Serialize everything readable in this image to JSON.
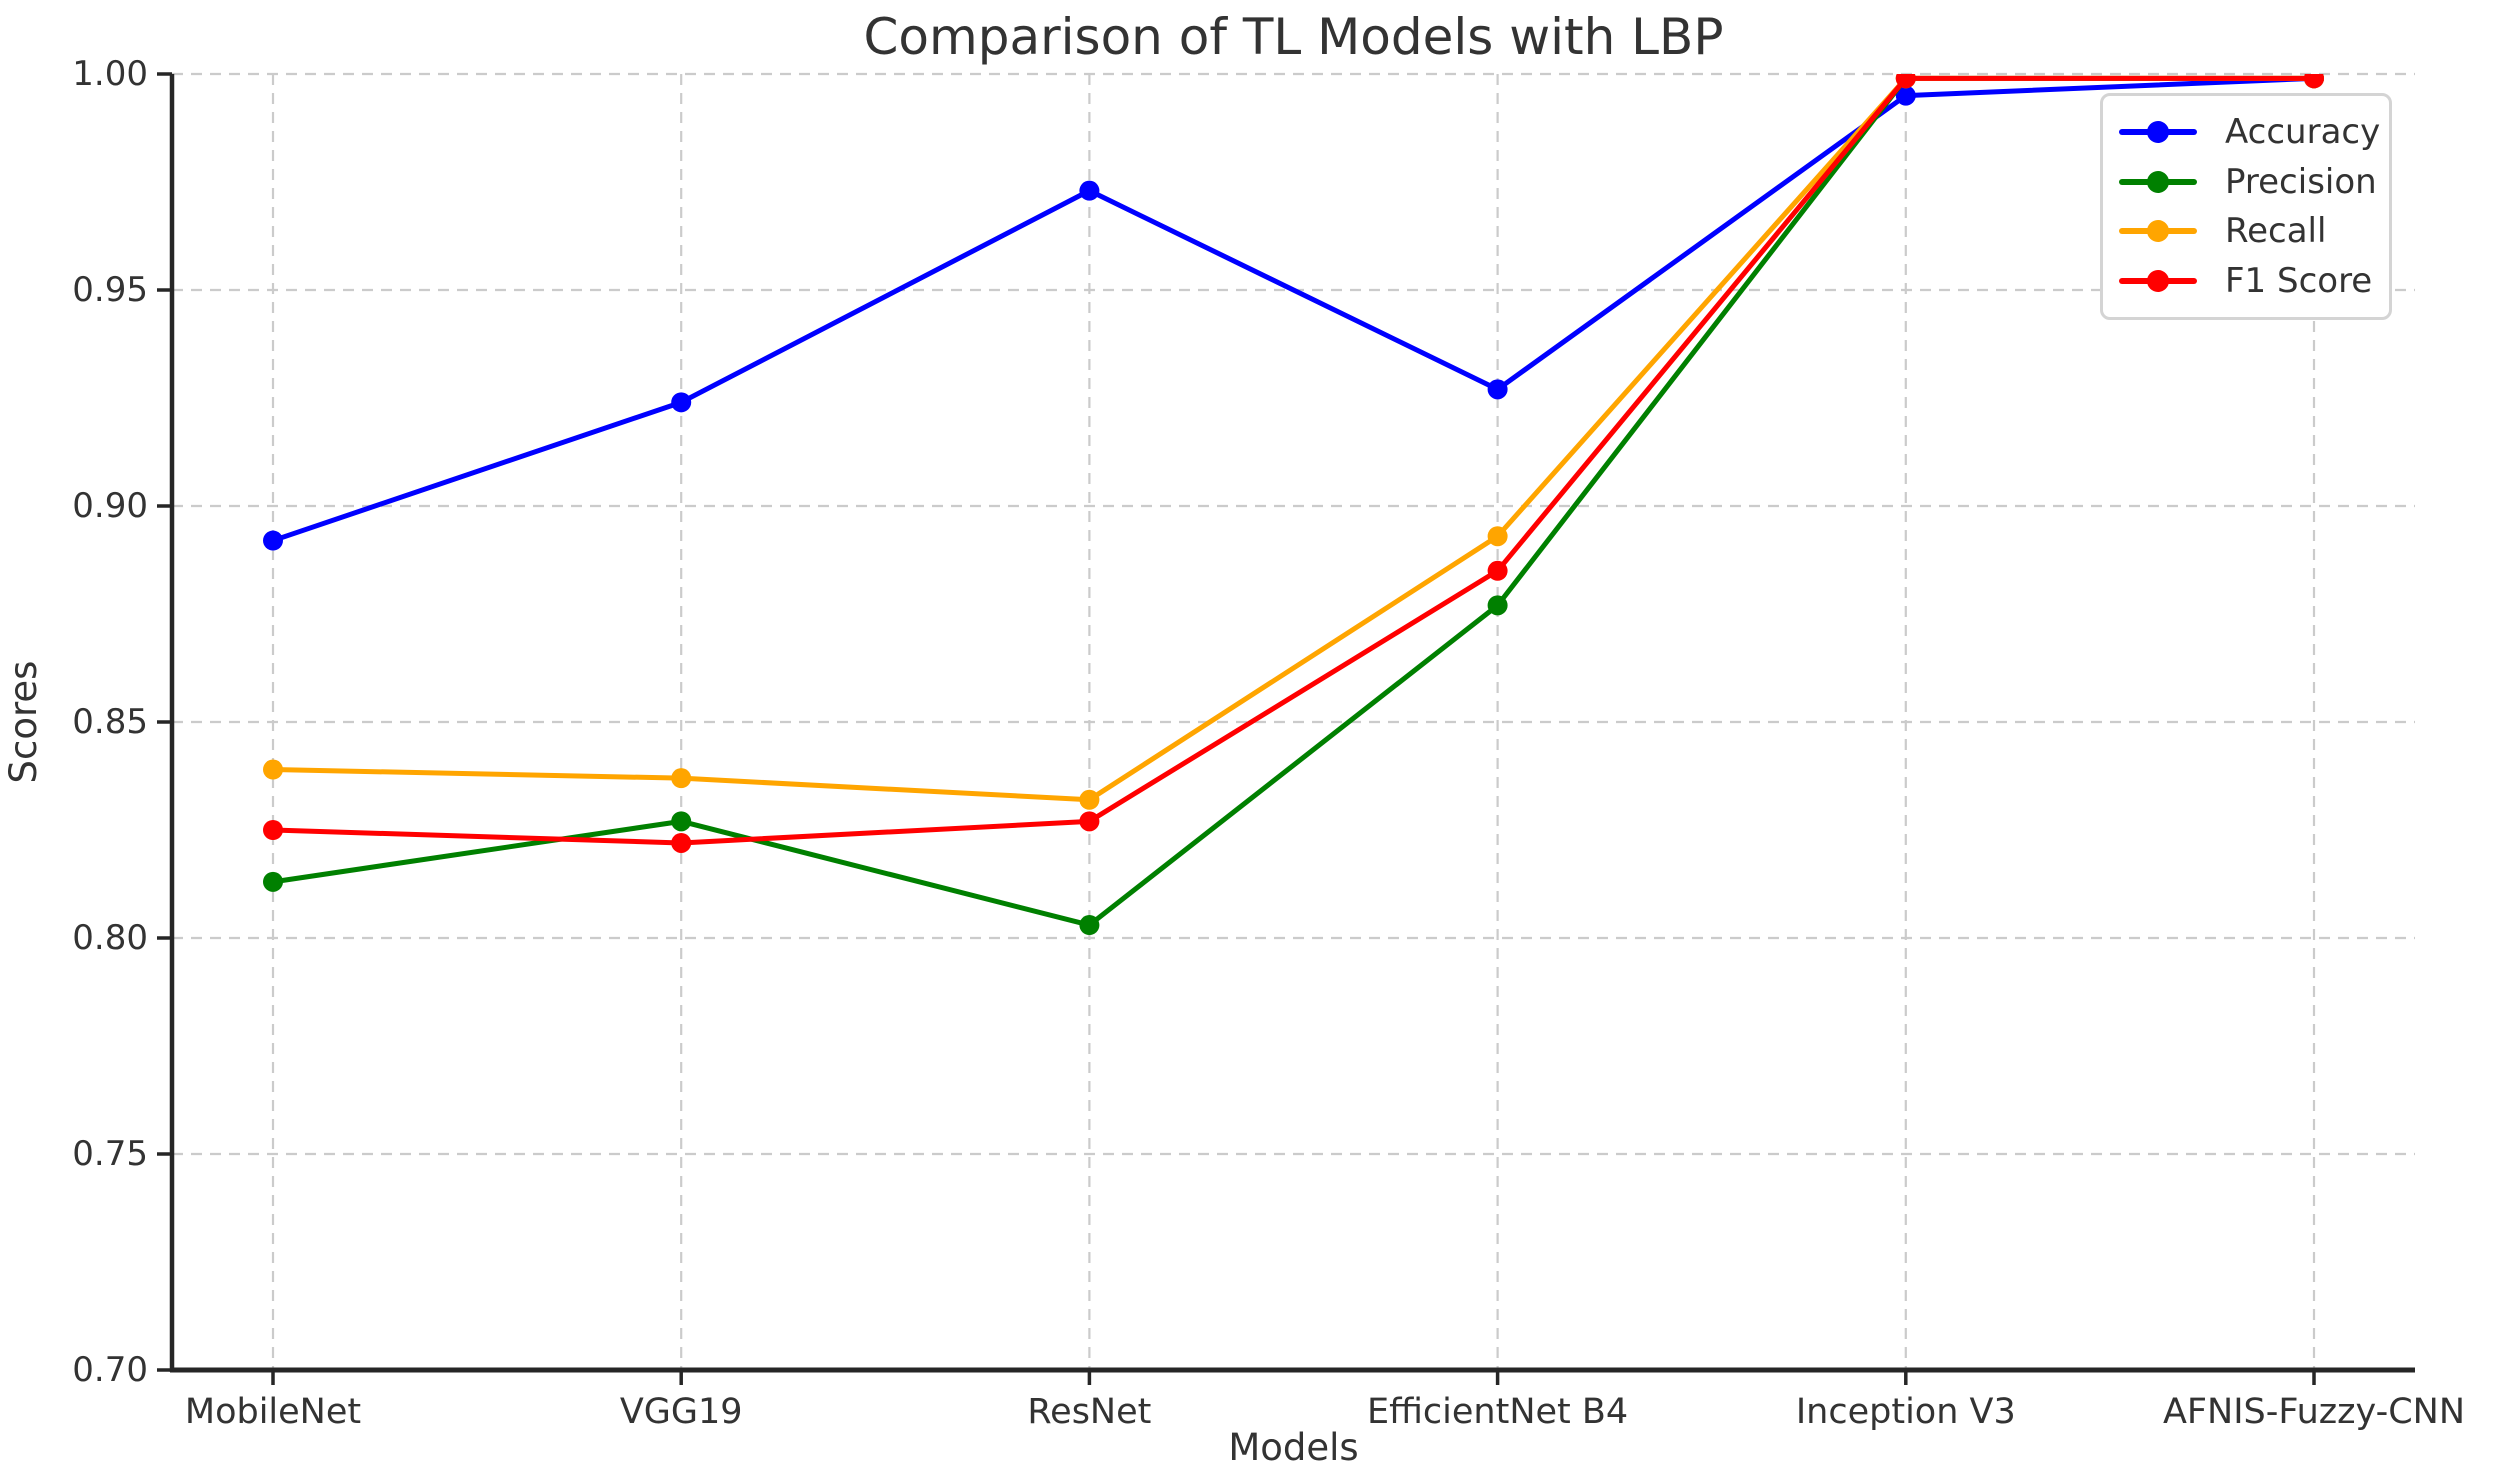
{
  "chart_data": {
    "type": "line",
    "title": "Comparison of TL Models with LBP",
    "xlabel": "Models",
    "ylabel": "Scores",
    "categories": [
      "MobileNet",
      "VGG19",
      "ResNet",
      "EfficientNet B4",
      "Inception V3",
      "AFNIS-Fuzzy-CNN"
    ],
    "series": [
      {
        "name": "Accuracy",
        "color": "#0000ff",
        "values": [
          0.892,
          0.924,
          0.973,
          0.927,
          0.995,
          0.999
        ]
      },
      {
        "name": "Precision",
        "color": "#008000",
        "values": [
          0.813,
          0.827,
          0.803,
          0.877,
          0.999,
          0.999
        ]
      },
      {
        "name": "Recall",
        "color": "#ffa500",
        "values": [
          0.839,
          0.837,
          0.832,
          0.893,
          0.999,
          0.999
        ]
      },
      {
        "name": "F1 Score",
        "color": "#ff0000",
        "values": [
          0.825,
          0.822,
          0.827,
          0.885,
          0.999,
          0.999
        ]
      }
    ],
    "ylim": [
      0.7,
      1.0
    ],
    "yticks": [
      "0.70",
      "0.75",
      "0.80",
      "0.85",
      "0.90",
      "0.95",
      "1.00"
    ],
    "grid": true,
    "grid_style": "dashed",
    "legend_position": "upper right",
    "legend_entries": [
      "Accuracy",
      "Precision",
      "Recall",
      "F1 Score"
    ]
  }
}
